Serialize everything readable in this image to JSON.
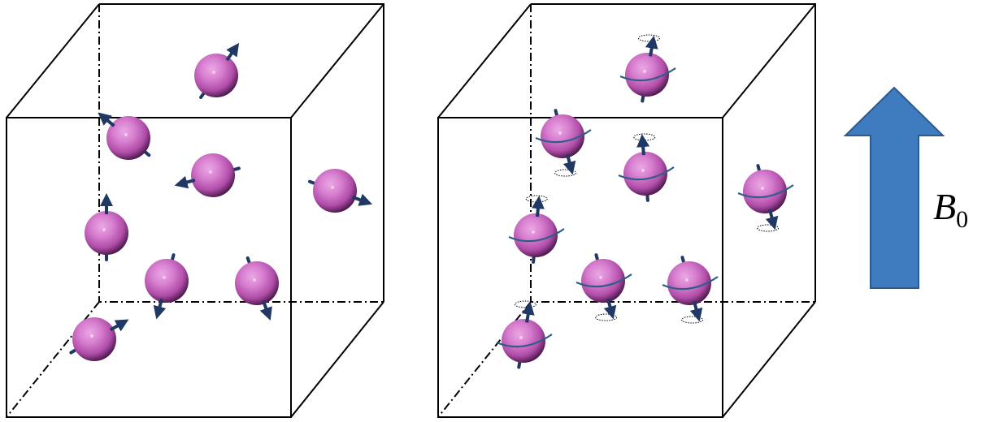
{
  "diagram": {
    "panels": [
      {
        "state": "random",
        "spins": [
          {
            "id": 1,
            "axis_deg": 35,
            "precessing": false
          },
          {
            "id": 2,
            "axis_deg": -50,
            "precessing": false
          },
          {
            "id": 3,
            "axis_deg": -105,
            "precessing": false
          },
          {
            "id": 4,
            "axis_deg": 110,
            "precessing": false
          },
          {
            "id": 5,
            "axis_deg": 0,
            "precessing": false
          },
          {
            "id": 6,
            "axis_deg": 195,
            "precessing": false
          },
          {
            "id": 7,
            "axis_deg": 160,
            "precessing": false
          },
          {
            "id": 8,
            "axis_deg": 60,
            "precessing": false
          }
        ]
      },
      {
        "state": "aligned_precessing",
        "spins": [
          {
            "id": 1,
            "axis_deg": 10,
            "precessing": true
          },
          {
            "id": 2,
            "axis_deg": 165,
            "precessing": true
          },
          {
            "id": 3,
            "axis_deg": -5,
            "precessing": true
          },
          {
            "id": 4,
            "axis_deg": 165,
            "precessing": true
          },
          {
            "id": 5,
            "axis_deg": 5,
            "precessing": true
          },
          {
            "id": 6,
            "axis_deg": 165,
            "precessing": true
          },
          {
            "id": 7,
            "axis_deg": 165,
            "precessing": true
          },
          {
            "id": 8,
            "axis_deg": 10,
            "precessing": true
          }
        ]
      }
    ],
    "field": {
      "label_symbol": "B",
      "label_subscript": "0",
      "arrow_color": "#3E7BBF",
      "arrow_stroke": "#2B5A8E"
    },
    "colors": {
      "sphere_light": "#D87FD0",
      "sphere_mid": "#B04DA8",
      "sphere_dark": "#3A0F3C",
      "spin_arrow": "#1F3864",
      "precession_ring": "#2F5D8A",
      "cube_edge": "#000000"
    }
  }
}
